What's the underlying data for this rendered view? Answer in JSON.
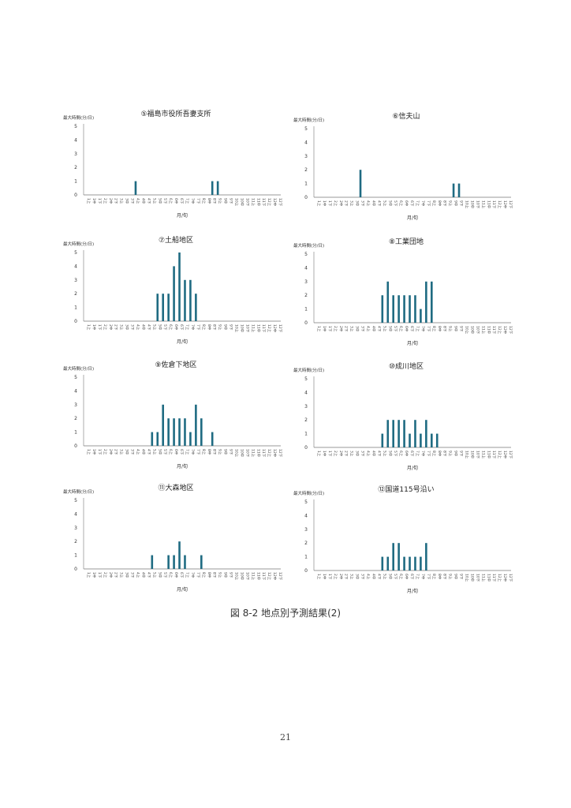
{
  "caption": "図 8-2 地点別予測結果(2)",
  "page_number": "21",
  "bar_color": "#1f6b82",
  "chart_data": [
    {
      "type": "bar",
      "title": "⑤福島市役所吾妻支所",
      "ylabel": "最大時間(分/日)",
      "xlabel": "月/旬",
      "ylim": [
        0,
        5
      ],
      "yticks": [
        0,
        1,
        2,
        3,
        4,
        5
      ],
      "values": {
        "9": 1,
        "23": 1,
        "24": 1
      }
    },
    {
      "type": "bar",
      "title": "⑥信夫山",
      "ylabel": "最大時間(分/日)",
      "xlabel": "月/旬",
      "ylim": [
        0,
        5
      ],
      "yticks": [
        0,
        1,
        2,
        3,
        4,
        5
      ],
      "values": {
        "8": 2,
        "25": 1,
        "26": 1
      }
    },
    {
      "type": "bar",
      "title": "⑦土船地区",
      "ylabel": "最大時間(分/日)",
      "xlabel": "月/旬",
      "ylim": [
        0,
        5
      ],
      "yticks": [
        0,
        1,
        2,
        3,
        4,
        5
      ],
      "values": {
        "13": 2,
        "14": 2,
        "15": 2,
        "16": 4,
        "17": 5,
        "18": 3,
        "19": 3,
        "20": 2
      }
    },
    {
      "type": "bar",
      "title": "⑧工業団地",
      "ylabel": "最大時間(分/日)",
      "xlabel": "月/旬",
      "ylim": [
        0,
        5
      ],
      "yticks": [
        0,
        1,
        2,
        3,
        4,
        5
      ],
      "values": {
        "12": 2,
        "13": 3,
        "14": 2,
        "15": 2,
        "16": 2,
        "17": 2,
        "18": 2,
        "19": 1,
        "20": 3,
        "21": 3
      }
    },
    {
      "type": "bar",
      "title": "⑨佐倉下地区",
      "ylabel": "最大時間(分/日)",
      "xlabel": "月/旬",
      "ylim": [
        0,
        5
      ],
      "yticks": [
        0,
        1,
        2,
        3,
        4,
        5
      ],
      "values": {
        "12": 1,
        "13": 1,
        "14": 3,
        "15": 2,
        "16": 2,
        "17": 2,
        "18": 2,
        "19": 1,
        "20": 3,
        "21": 2,
        "23": 1
      }
    },
    {
      "type": "bar",
      "title": "⑩成川地区",
      "ylabel": "最大時間(分/日)",
      "xlabel": "月/旬",
      "ylim": [
        0,
        5
      ],
      "yticks": [
        0,
        1,
        2,
        3,
        4,
        5
      ],
      "values": {
        "12": 1,
        "13": 2,
        "14": 2,
        "15": 2,
        "16": 2,
        "17": 1,
        "18": 2,
        "19": 1,
        "20": 2,
        "21": 1,
        "22": 1
      }
    },
    {
      "type": "bar",
      "title": "⑪大森地区",
      "ylabel": "最大時間(分/日)",
      "xlabel": "月/旬",
      "ylim": [
        0,
        5
      ],
      "yticks": [
        0,
        1,
        2,
        3,
        4,
        5
      ],
      "values": {
        "12": 1,
        "15": 1,
        "16": 1,
        "17": 2,
        "18": 1,
        "21": 1
      }
    },
    {
      "type": "bar",
      "title": "⑫国道115号沿い",
      "ylabel": "最大時間(分/日)",
      "xlabel": "月/旬",
      "ylim": [
        0,
        5
      ],
      "yticks": [
        0,
        1,
        2,
        3,
        4,
        5
      ],
      "values": {
        "12": 1,
        "13": 1,
        "14": 2,
        "15": 2,
        "16": 1,
        "17": 1,
        "18": 1,
        "19": 1,
        "20": 2
      }
    }
  ],
  "categories": [
    "1上",
    "1中",
    "1下",
    "2上",
    "2中",
    "2下",
    "3上",
    "3中",
    "3下",
    "4上",
    "4中",
    "4下",
    "5上",
    "5中",
    "5下",
    "6上",
    "6中",
    "6下",
    "7上",
    "7中",
    "7下",
    "8上",
    "8中",
    "8下",
    "9上",
    "9中",
    "9下",
    "10上",
    "10中",
    "10下",
    "11上",
    "11中",
    "11下",
    "12上",
    "12中",
    "12下"
  ]
}
